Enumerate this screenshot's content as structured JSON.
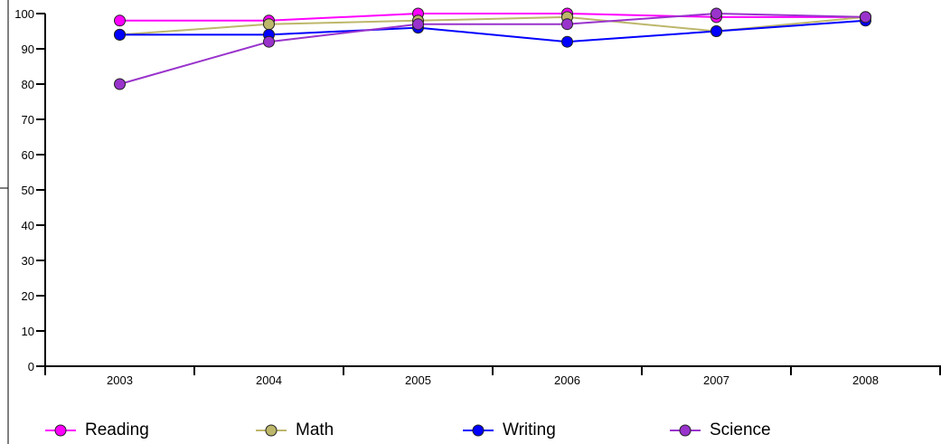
{
  "chart_data": {
    "type": "line",
    "title": "",
    "xlabel": "",
    "ylabel": "",
    "categories": [
      "2003",
      "2004",
      "2005",
      "2006",
      "2007",
      "2008"
    ],
    "ylim": [
      0,
      100
    ],
    "yticks": [
      "0",
      "10",
      "20",
      "30",
      "40",
      "50",
      "60",
      "70",
      "80",
      "90",
      "100"
    ],
    "grid": false,
    "legend_position": "bottom",
    "series": [
      {
        "name": "Reading",
        "color": "#ff00ff",
        "values": [
          98,
          98,
          100,
          100,
          99,
          99
        ]
      },
      {
        "name": "Math",
        "color": "#bdb76b",
        "values": [
          94,
          97,
          98,
          99,
          95,
          99
        ]
      },
      {
        "name": "Writing",
        "color": "#0000ff",
        "values": [
          94,
          94,
          96,
          92,
          95,
          98
        ]
      },
      {
        "name": "Science",
        "color": "#9933cc",
        "values": [
          80,
          92,
          97,
          97,
          100,
          99
        ]
      }
    ]
  }
}
